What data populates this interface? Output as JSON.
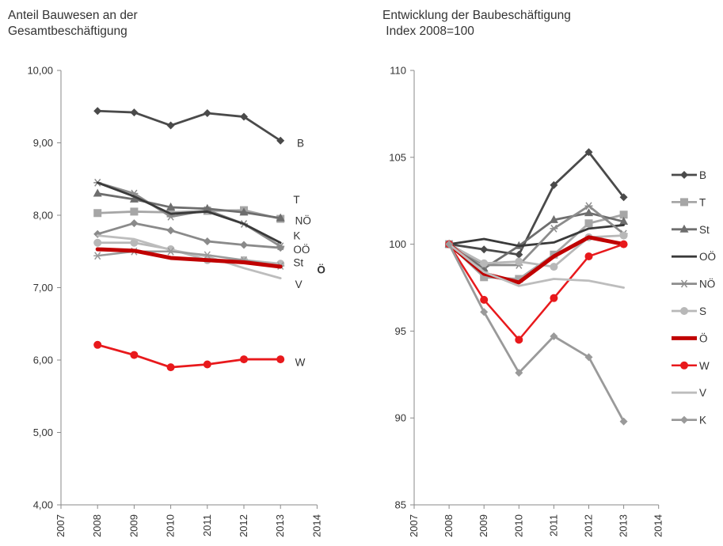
{
  "chart_data": [
    {
      "type": "line",
      "title": "Anteil Bauwesen an der\nGesamtbeschäftigung",
      "xlabel": "",
      "ylabel": "",
      "x": [
        2007,
        2008,
        2009,
        2010,
        2011,
        2012,
        2013,
        2014
      ],
      "ylim": [
        4,
        10
      ],
      "yticks": [
        "4,00",
        "5,00",
        "6,00",
        "7,00",
        "8,00",
        "9,00",
        "10,00"
      ],
      "grid": false,
      "legend": "direct labels at line ends",
      "series": [
        {
          "name": "B",
          "color": "#4a4a4a",
          "marker": "diamond",
          "width": 2.8,
          "x": [
            2008,
            2009,
            2010,
            2011,
            2012,
            2013
          ],
          "values": [
            9.44,
            9.42,
            9.24,
            9.41,
            9.36,
            9.03
          ]
        },
        {
          "name": "T",
          "color": "#a6a6a6",
          "marker": "square",
          "width": 2.8,
          "x": [
            2008,
            2009,
            2010,
            2011,
            2012,
            2013
          ],
          "values": [
            8.03,
            8.05,
            8.04,
            8.06,
            8.07,
            7.95
          ]
        },
        {
          "name": "NÖ",
          "color": "#8c8c8c",
          "marker": "star",
          "width": 2.8,
          "x": [
            2008,
            2009,
            2010,
            2011,
            2012,
            2013
          ],
          "values": [
            8.45,
            8.3,
            7.98,
            8.07,
            7.88,
            7.57
          ]
        },
        {
          "name": "K",
          "color": "#6e6e6e",
          "marker": "triangle",
          "width": 2.8,
          "x": [
            2008,
            2009,
            2010,
            2011,
            2012,
            2013
          ],
          "values": [
            8.3,
            8.22,
            8.11,
            8.09,
            8.04,
            7.96
          ]
        },
        {
          "name": "OÖ",
          "color": "#3a3a3a",
          "marker": "none",
          "width": 2.8,
          "x": [
            2008,
            2009,
            2010,
            2011,
            2012,
            2013
          ],
          "values": [
            8.45,
            8.26,
            8.02,
            8.05,
            7.88,
            7.62
          ]
        },
        {
          "name": "St",
          "color": "#8a8a8a",
          "marker": "diamond",
          "width": 2.8,
          "x": [
            2008,
            2009,
            2010,
            2011,
            2012,
            2013
          ],
          "values": [
            7.74,
            7.89,
            7.79,
            7.64,
            7.59,
            7.55
          ]
        },
        {
          "name": "",
          "color": "#b8b8b8",
          "marker": "circle",
          "width": 2.8,
          "x": [
            2008,
            2009,
            2010,
            2011,
            2012,
            2013
          ],
          "values": [
            7.62,
            7.62,
            7.53,
            7.38,
            7.38,
            7.33
          ]
        },
        {
          "name": "V",
          "color": "#bdbdbd",
          "marker": "none",
          "width": 2.8,
          "x": [
            2008,
            2009,
            2010,
            2011,
            2012,
            2013
          ],
          "values": [
            7.72,
            7.67,
            7.52,
            7.43,
            7.27,
            7.13
          ]
        },
        {
          "name": "",
          "color": "#9a9a9a",
          "marker": "star",
          "width": 2.5,
          "x": [
            2008,
            2009,
            2010,
            2011,
            2012,
            2013
          ],
          "values": [
            7.44,
            7.5,
            7.5,
            7.45,
            7.38,
            7.3
          ]
        },
        {
          "name": "Ö",
          "color": "#c00000",
          "marker": "none",
          "width": 5,
          "x": [
            2008,
            2009,
            2010,
            2011,
            2012,
            2013
          ],
          "values": [
            7.53,
            7.51,
            7.41,
            7.38,
            7.35,
            7.29
          ]
        },
        {
          "name": "W",
          "color": "#e8191c",
          "marker": "circle",
          "width": 2.8,
          "x": [
            2008,
            2009,
            2010,
            2011,
            2012,
            2013
          ],
          "values": [
            6.21,
            6.07,
            5.9,
            5.94,
            6.01,
            6.01
          ]
        }
      ],
      "end_labels": [
        {
          "text": "B",
          "color": "#333333",
          "at": [
            2013.45,
            9.0
          ]
        },
        {
          "text": "T",
          "color": "#333333",
          "at": [
            2013.35,
            8.22
          ]
        },
        {
          "text": "NÖ",
          "color": "#333333",
          "at": [
            2013.4,
            7.93
          ]
        },
        {
          "text": "K",
          "color": "#333333",
          "at": [
            2013.35,
            7.72
          ]
        },
        {
          "text": "OÖ",
          "color": "#333333",
          "at": [
            2013.35,
            7.53
          ]
        },
        {
          "text": "St",
          "color": "#333333",
          "at": [
            2013.35,
            7.35
          ]
        },
        {
          "text": "Ö",
          "color": "#c00000",
          "at": [
            2014.0,
            7.25
          ]
        },
        {
          "text": "V",
          "color": "#333333",
          "at": [
            2013.4,
            7.05
          ]
        },
        {
          "text": "W",
          "color": "#e8191c",
          "at": [
            2013.4,
            5.97
          ]
        }
      ]
    },
    {
      "type": "line",
      "title": "Entwicklung der Baubeschäftigung\n Index 2008=100",
      "xlabel": "",
      "ylabel": "",
      "x": [
        2007,
        2008,
        2009,
        2010,
        2011,
        2012,
        2013,
        2014
      ],
      "ylim": [
        85,
        110
      ],
      "yticks": [
        "85",
        "90",
        "95",
        "100",
        "105",
        "110"
      ],
      "grid": false,
      "legend": "right",
      "series": [
        {
          "name": "B",
          "color": "#4a4a4a",
          "marker": "diamond",
          "width": 2.8,
          "x": [
            2008,
            2009,
            2010,
            2011,
            2012,
            2013
          ],
          "values": [
            100,
            99.7,
            99.4,
            103.4,
            105.3,
            102.7
          ]
        },
        {
          "name": "T",
          "color": "#a6a6a6",
          "marker": "square",
          "width": 2.8,
          "x": [
            2008,
            2009,
            2010,
            2011,
            2012,
            2013
          ],
          "values": [
            100,
            98.1,
            98.0,
            99.4,
            101.2,
            101.7
          ]
        },
        {
          "name": "St",
          "color": "#6e6e6e",
          "marker": "triangle",
          "width": 2.8,
          "x": [
            2008,
            2009,
            2010,
            2011,
            2012,
            2013
          ],
          "values": [
            100,
            98.6,
            99.9,
            101.4,
            101.8,
            101.3
          ]
        },
        {
          "name": "OÖ",
          "color": "#3a3a3a",
          "marker": "none",
          "width": 2.8,
          "x": [
            2008,
            2009,
            2010,
            2011,
            2012,
            2013
          ],
          "values": [
            100,
            100.3,
            99.9,
            100.1,
            100.9,
            101.1
          ]
        },
        {
          "name": "NÖ",
          "color": "#8c8c8c",
          "marker": "star",
          "width": 2.8,
          "x": [
            2008,
            2009,
            2010,
            2011,
            2012,
            2013
          ],
          "values": [
            100,
            98.8,
            98.8,
            100.9,
            102.2,
            100.6
          ]
        },
        {
          "name": "S",
          "color": "#b8b8b8",
          "marker": "circle",
          "width": 2.8,
          "x": [
            2008,
            2009,
            2010,
            2011,
            2012,
            2013
          ],
          "values": [
            100,
            98.9,
            99.0,
            98.7,
            100.4,
            100.5
          ]
        },
        {
          "name": "Ö",
          "color": "#c00000",
          "marker": "none",
          "width": 5,
          "x": [
            2008,
            2009,
            2010,
            2011,
            2012,
            2013
          ],
          "values": [
            100,
            98.3,
            97.8,
            99.3,
            100.4,
            100.0
          ]
        },
        {
          "name": "W",
          "color": "#e8191c",
          "marker": "circle",
          "width": 2.5,
          "x": [
            2008,
            2009,
            2010,
            2011,
            2012,
            2013
          ],
          "values": [
            100,
            96.8,
            94.5,
            96.9,
            99.3,
            100.0
          ]
        },
        {
          "name": "V",
          "color": "#bdbdbd",
          "marker": "none",
          "width": 2.8,
          "x": [
            2008,
            2009,
            2010,
            2011,
            2012,
            2013
          ],
          "values": [
            100,
            98.4,
            97.6,
            98.0,
            97.9,
            97.5
          ]
        },
        {
          "name": "K",
          "color": "#9a9a9a",
          "marker": "diamond",
          "width": 2.8,
          "x": [
            2008,
            2009,
            2010,
            2011,
            2012,
            2013
          ],
          "values": [
            100,
            96.1,
            92.6,
            94.7,
            93.5,
            89.8
          ]
        }
      ]
    }
  ]
}
